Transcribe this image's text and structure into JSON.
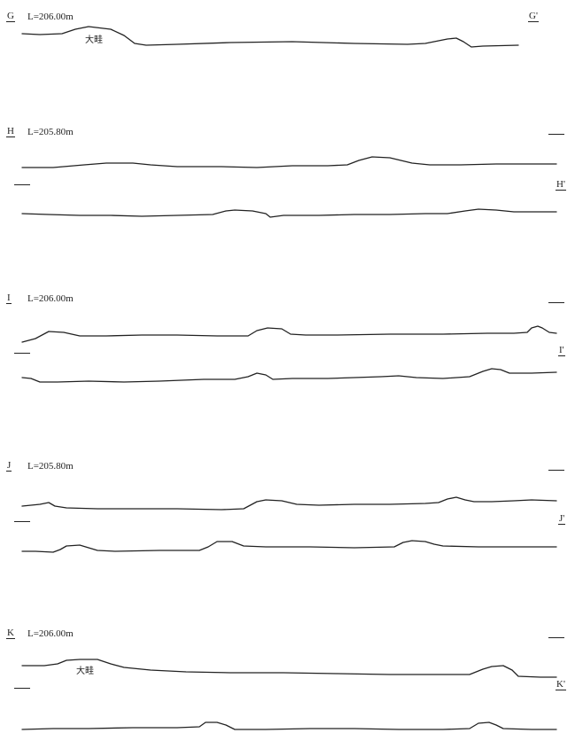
{
  "sections": [
    {
      "id": "G",
      "start_mark": "G",
      "end_mark": "G'",
      "level": "L=206.00m",
      "annotation": "大畦"
    },
    {
      "id": "H",
      "start_mark": "H",
      "end_mark": "H'",
      "level": "L=205.80m",
      "annotation": ""
    },
    {
      "id": "I",
      "start_mark": "I",
      "end_mark": "I'",
      "level": "L=206.00m",
      "annotation": ""
    },
    {
      "id": "J",
      "start_mark": "J",
      "end_mark": "J'",
      "level": "L=205.80m",
      "annotation": ""
    },
    {
      "id": "K",
      "start_mark": "K",
      "end_mark": "K'",
      "level": "L=206.00m",
      "annotation": "大畦"
    }
  ],
  "line_color": "#222222"
}
